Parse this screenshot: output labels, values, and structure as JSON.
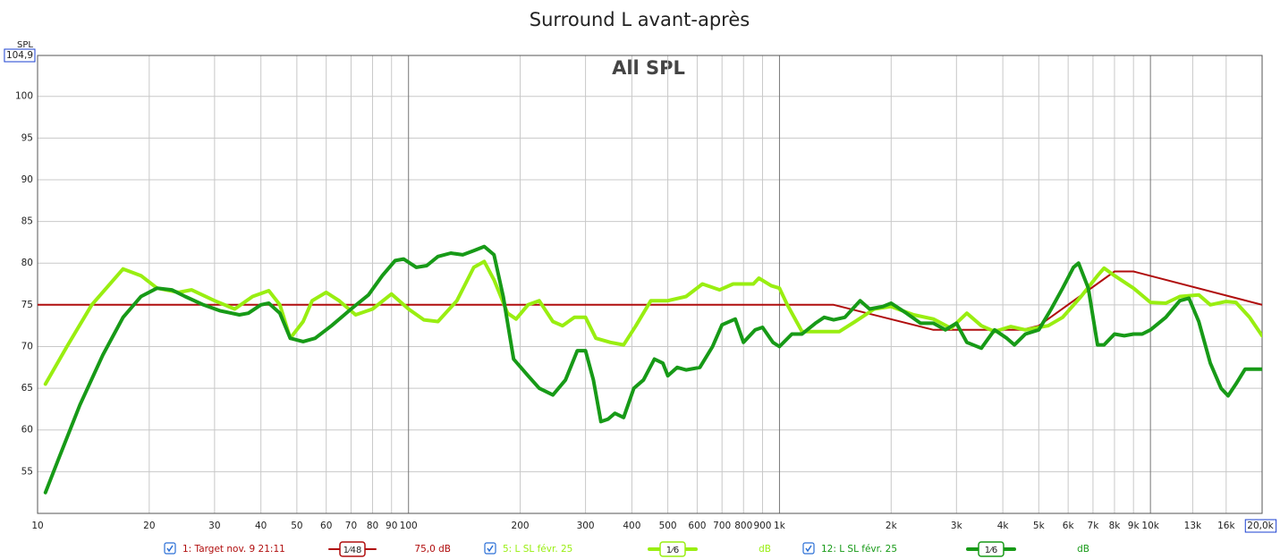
{
  "chart_data": {
    "type": "line",
    "title": "Surround L avant-après",
    "annotation": "All SPL",
    "y_label": "SPL",
    "log_x": true,
    "grid": true,
    "xlim": [
      10,
      20000
    ],
    "ylim": [
      50,
      104.9
    ],
    "xticks": [
      10,
      20,
      30,
      40,
      50,
      60,
      70,
      80,
      90,
      100,
      200,
      300,
      400,
      500,
      600,
      700,
      800,
      900,
      {
        "value": 1000,
        "label": "1k"
      },
      {
        "value": 2000,
        "label": "2k"
      },
      {
        "value": 3000,
        "label": "3k"
      },
      {
        "value": 4000,
        "label": "4k"
      },
      {
        "value": 5000,
        "label": "5k"
      },
      {
        "value": 6000,
        "label": "6k"
      },
      {
        "value": 7000,
        "label": "7k"
      },
      {
        "value": 8000,
        "label": "8k"
      },
      {
        "value": 9000,
        "label": "9k"
      },
      {
        "value": 10000,
        "label": "10k"
      },
      {
        "value": 13000,
        "label": "13k"
      },
      {
        "value": 16000,
        "label": "16k"
      },
      {
        "value": 20000,
        "label": "20,0k"
      }
    ],
    "yticks": [
      55,
      60,
      65,
      70,
      75,
      80,
      85,
      90,
      95,
      100,
      {
        "value": 104.9,
        "label": "104,9"
      }
    ],
    "series": [
      {
        "name": "1: Target nov. 9 21:11",
        "color": "#b00d0d",
        "smoothing": "1⁄48",
        "readout": "75,0 dB",
        "x": [
          10,
          1400,
          2600,
          4500,
          5000,
          8000,
          9000,
          20000
        ],
        "values": [
          75,
          75,
          72,
          72,
          72.5,
          79,
          79,
          75
        ]
      },
      {
        "name": "5: L SL févr. 25",
        "color": "#99ee11",
        "smoothing": "1⁄6",
        "readout": "dB",
        "x": [
          10.5,
          12,
          14,
          17,
          19,
          21,
          24,
          26,
          30,
          34,
          38,
          42,
          45,
          48,
          52,
          55,
          60,
          65,
          72,
          80,
          90,
          100,
          110,
          120,
          135,
          150,
          160,
          170,
          185,
          195,
          210,
          225,
          245,
          260,
          280,
          300,
          320,
          350,
          380,
          410,
          450,
          500,
          560,
          620,
          690,
          750,
          850,
          880,
          950,
          1000,
          1050,
          1150,
          1300,
          1450,
          1600,
          1800,
          2000,
          2300,
          2600,
          2900,
          3200,
          3500,
          3800,
          4200,
          4600,
          5300,
          5800,
          6500,
          7200,
          7500,
          8000,
          9000,
          10000,
          11000,
          12000,
          13500,
          14500,
          16000,
          17000,
          18500,
          20000
        ],
        "values": [
          65.5,
          70,
          75,
          79.3,
          78.5,
          77,
          76.5,
          76.8,
          75.5,
          74.5,
          76,
          76.7,
          75,
          71,
          73,
          75.5,
          76.5,
          75.5,
          73.8,
          74.5,
          76.3,
          74.5,
          73.2,
          73,
          75.5,
          79.5,
          80.2,
          78,
          74,
          73.3,
          75,
          75.5,
          73,
          72.5,
          73.5,
          73.5,
          71,
          70.5,
          70.2,
          72.5,
          75.5,
          75.5,
          76,
          77.5,
          76.8,
          77.5,
          77.5,
          78.2,
          77.3,
          77,
          75,
          71.8,
          71.8,
          71.8,
          73,
          74.5,
          74.8,
          73.8,
          73.3,
          72.2,
          74,
          72.5,
          71.8,
          72.4,
          72,
          72.5,
          73.5,
          76,
          78.5,
          79.4,
          78.5,
          77,
          75.3,
          75.2,
          76,
          76.2,
          75,
          75.4,
          75.3,
          73.5,
          71.3
        ]
      },
      {
        "name": "12: L SL févr. 25",
        "color": "#179a17",
        "smoothing": "1⁄6",
        "readout": "dB",
        "x": [
          10.5,
          11.5,
          13,
          15,
          17,
          19,
          21,
          23,
          25,
          28,
          31,
          35,
          37,
          40,
          42,
          45,
          48,
          52,
          56,
          62,
          70,
          78,
          85,
          92,
          97,
          105,
          112,
          120,
          130,
          140,
          150,
          160,
          170,
          180,
          192,
          210,
          225,
          245,
          265,
          285,
          300,
          315,
          330,
          345,
          360,
          380,
          405,
          430,
          460,
          485,
          500,
          530,
          560,
          610,
          660,
          700,
          760,
          800,
          860,
          900,
          960,
          1000,
          1080,
          1150,
          1250,
          1320,
          1400,
          1500,
          1650,
          1750,
          1900,
          2000,
          2200,
          2400,
          2600,
          2800,
          3000,
          3200,
          3500,
          3800,
          4100,
          4300,
          4600,
          5000,
          5400,
          5800,
          6200,
          6400,
          6800,
          7200,
          7500,
          8000,
          8500,
          9000,
          9500,
          10000,
          11000,
          12000,
          12700,
          13500,
          14500,
          15500,
          16200,
          17000,
          18000,
          20000
        ],
        "values": [
          52.5,
          57,
          63,
          69,
          73.5,
          76,
          77,
          76.8,
          76,
          75,
          74.3,
          73.8,
          74,
          75,
          75.2,
          74,
          71,
          70.6,
          71,
          72.5,
          74.5,
          76.2,
          78.5,
          80.3,
          80.5,
          79.5,
          79.7,
          80.8,
          81.2,
          81,
          81.5,
          82,
          81,
          76,
          68.5,
          66.5,
          65,
          64.2,
          66,
          69.5,
          69.5,
          66,
          61,
          61.3,
          62,
          61.5,
          65,
          66,
          68.5,
          68,
          66.5,
          67.5,
          67.2,
          67.5,
          70,
          72.6,
          73.3,
          70.5,
          72,
          72.3,
          70.5,
          70,
          71.5,
          71.5,
          72.8,
          73.5,
          73.2,
          73.5,
          75.5,
          74.5,
          74.8,
          75.2,
          74,
          72.8,
          72.8,
          72,
          72.8,
          70.5,
          69.8,
          72,
          71,
          70.2,
          71.5,
          72,
          74.5,
          77,
          79.5,
          80,
          77,
          70.2,
          70.2,
          71.5,
          71.3,
          71.5,
          71.5,
          72,
          73.5,
          75.5,
          75.8,
          73,
          68,
          65,
          64.1,
          65.5,
          67.3,
          67.3
        ]
      }
    ]
  }
}
